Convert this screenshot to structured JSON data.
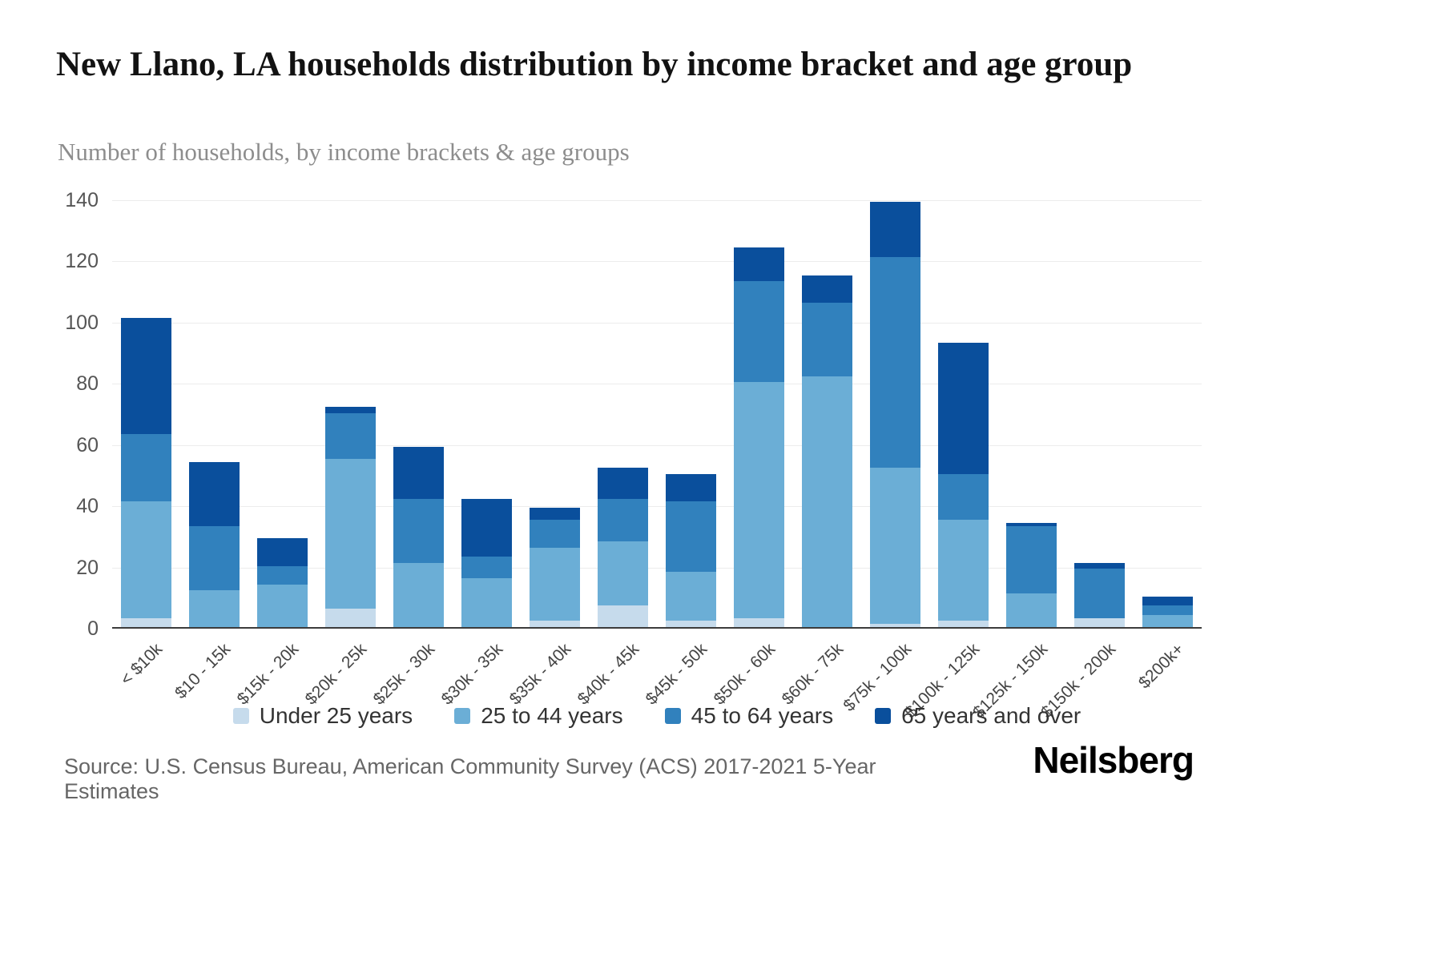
{
  "header": {
    "title": "New Llano, LA households distribution by income bracket and age group",
    "subtitle": "Number of households, by income brackets & age groups"
  },
  "footer": {
    "source": "Source: U.S. Census Bureau, American Community Survey (ACS) 2017-2021 5-Year Estimates",
    "brand": "Neilsberg"
  },
  "chart_data": {
    "type": "bar",
    "stacked": true,
    "title": "New Llano, LA households distribution by income bracket and age group",
    "subtitle": "Number of households, by income brackets & age groups",
    "xlabel": "",
    "ylabel": "Number of households",
    "ylim": [
      0,
      140
    ],
    "yticks": [
      0,
      20,
      40,
      60,
      80,
      100,
      120,
      140
    ],
    "grid": true,
    "legend_position": "bottom",
    "categories": [
      "< $10k",
      "$10 - 15k",
      "$15k - 20k",
      "$20k - 25k",
      "$25k - 30k",
      "$30k - 35k",
      "$35k - 40k",
      "$40k - 45k",
      "$45k - 50k",
      "$50k - 60k",
      "$60k - 75k",
      "$75k - 100k",
      "$100k - 125k",
      "$125k - 150k",
      "$150k - 200k",
      "$200k+"
    ],
    "series": [
      {
        "name": "Under 25 years",
        "color": "#c6dbec",
        "values": [
          3,
          0,
          0,
          6,
          0,
          0,
          2,
          7,
          2,
          3,
          0,
          1,
          2,
          0,
          3,
          0
        ]
      },
      {
        "name": "25 to 44 years",
        "color": "#6baed6",
        "values": [
          38,
          12,
          14,
          49,
          21,
          16,
          24,
          21,
          16,
          77,
          82,
          51,
          33,
          11,
          0,
          4
        ]
      },
      {
        "name": "45 to 64 years",
        "color": "#3181bd",
        "values": [
          22,
          21,
          6,
          15,
          21,
          7,
          9,
          14,
          23,
          33,
          24,
          69,
          15,
          22,
          16,
          3
        ]
      },
      {
        "name": "65 years and over",
        "color": "#0a4f9c",
        "values": [
          38,
          21,
          9,
          2,
          17,
          19,
          4,
          10,
          9,
          11,
          9,
          18,
          43,
          1,
          2,
          3
        ]
      }
    ]
  }
}
